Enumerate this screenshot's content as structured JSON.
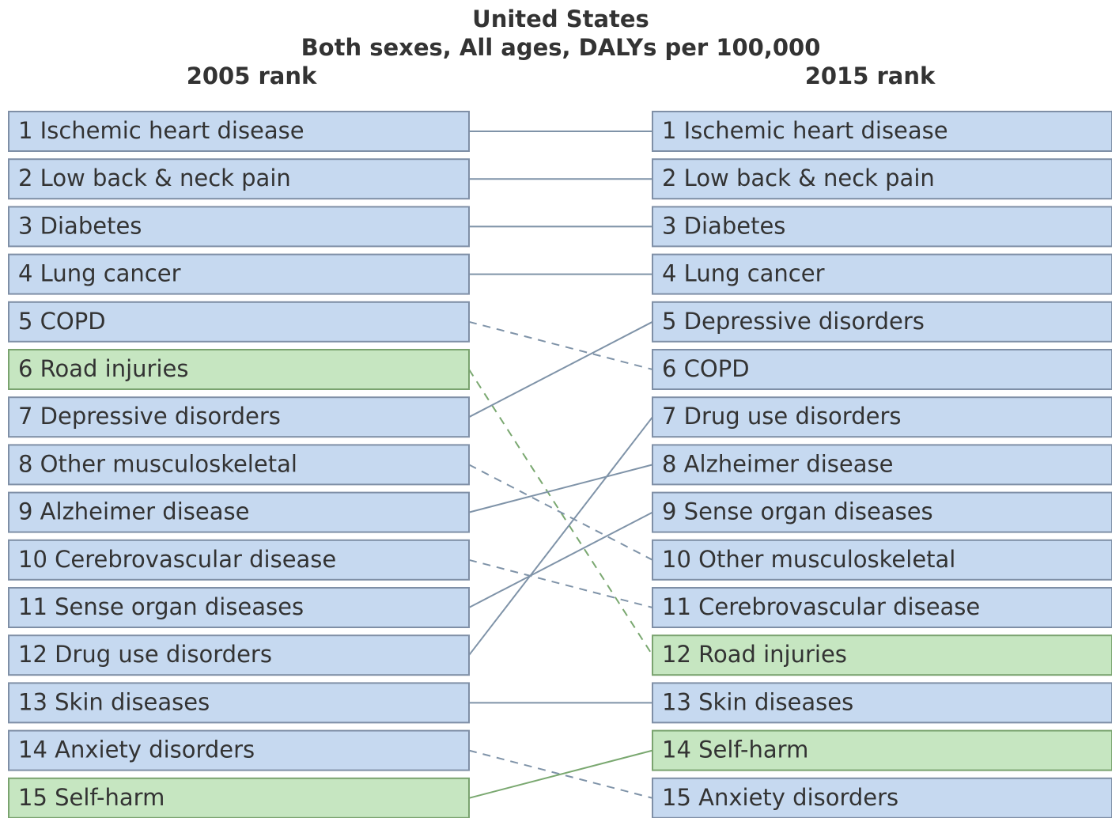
{
  "title": [
    "United States",
    "Both sexes, All ages, DALYs per 100,000"
  ],
  "left": {
    "header": "2005 rank",
    "items": [
      {
        "rank": 1,
        "name": "Ischemic heart disease",
        "color": "#c6d9f0"
      },
      {
        "rank": 2,
        "name": "Low back & neck pain",
        "color": "#c6d9f0"
      },
      {
        "rank": 3,
        "name": "Diabetes",
        "color": "#c6d9f0"
      },
      {
        "rank": 4,
        "name": "Lung cancer",
        "color": "#c6d9f0"
      },
      {
        "rank": 5,
        "name": "COPD",
        "color": "#c6d9f0"
      },
      {
        "rank": 6,
        "name": "Road injuries",
        "color": "#c6e6c1"
      },
      {
        "rank": 7,
        "name": "Depressive disorders",
        "color": "#c6d9f0"
      },
      {
        "rank": 8,
        "name": "Other musculoskeletal",
        "color": "#c6d9f0"
      },
      {
        "rank": 9,
        "name": "Alzheimer disease",
        "color": "#c6d9f0"
      },
      {
        "rank": 10,
        "name": "Cerebrovascular disease",
        "color": "#c6d9f0"
      },
      {
        "rank": 11,
        "name": "Sense organ diseases",
        "color": "#c6d9f0"
      },
      {
        "rank": 12,
        "name": "Drug use disorders",
        "color": "#c6d9f0"
      },
      {
        "rank": 13,
        "name": "Skin diseases",
        "color": "#c6d9f0"
      },
      {
        "rank": 14,
        "name": "Anxiety disorders",
        "color": "#c6d9f0"
      },
      {
        "rank": 15,
        "name": "Self-harm",
        "color": "#c6e6c1"
      }
    ]
  },
  "right": {
    "header": "2015 rank",
    "items": [
      {
        "rank": 1,
        "name": "Ischemic heart disease",
        "color": "#c6d9f0"
      },
      {
        "rank": 2,
        "name": "Low back & neck pain",
        "color": "#c6d9f0"
      },
      {
        "rank": 3,
        "name": "Diabetes",
        "color": "#c6d9f0"
      },
      {
        "rank": 4,
        "name": "Lung cancer",
        "color": "#c6d9f0"
      },
      {
        "rank": 5,
        "name": "Depressive disorders",
        "color": "#c6d9f0"
      },
      {
        "rank": 6,
        "name": "COPD",
        "color": "#c6d9f0"
      },
      {
        "rank": 7,
        "name": "Drug use disorders",
        "color": "#c6d9f0"
      },
      {
        "rank": 8,
        "name": "Alzheimer disease",
        "color": "#c6d9f0"
      },
      {
        "rank": 9,
        "name": "Sense organ diseases",
        "color": "#c6d9f0"
      },
      {
        "rank": 10,
        "name": "Other musculoskeletal",
        "color": "#c6d9f0"
      },
      {
        "rank": 11,
        "name": "Cerebrovascular disease",
        "color": "#c6d9f0"
      },
      {
        "rank": 12,
        "name": "Road injuries",
        "color": "#c6e6c1"
      },
      {
        "rank": 13,
        "name": "Skin diseases",
        "color": "#c6d9f0"
      },
      {
        "rank": 14,
        "name": "Self-harm",
        "color": "#c6e6c1"
      },
      {
        "rank": 15,
        "name": "Anxiety disorders",
        "color": "#c6d9f0"
      }
    ]
  }
}
